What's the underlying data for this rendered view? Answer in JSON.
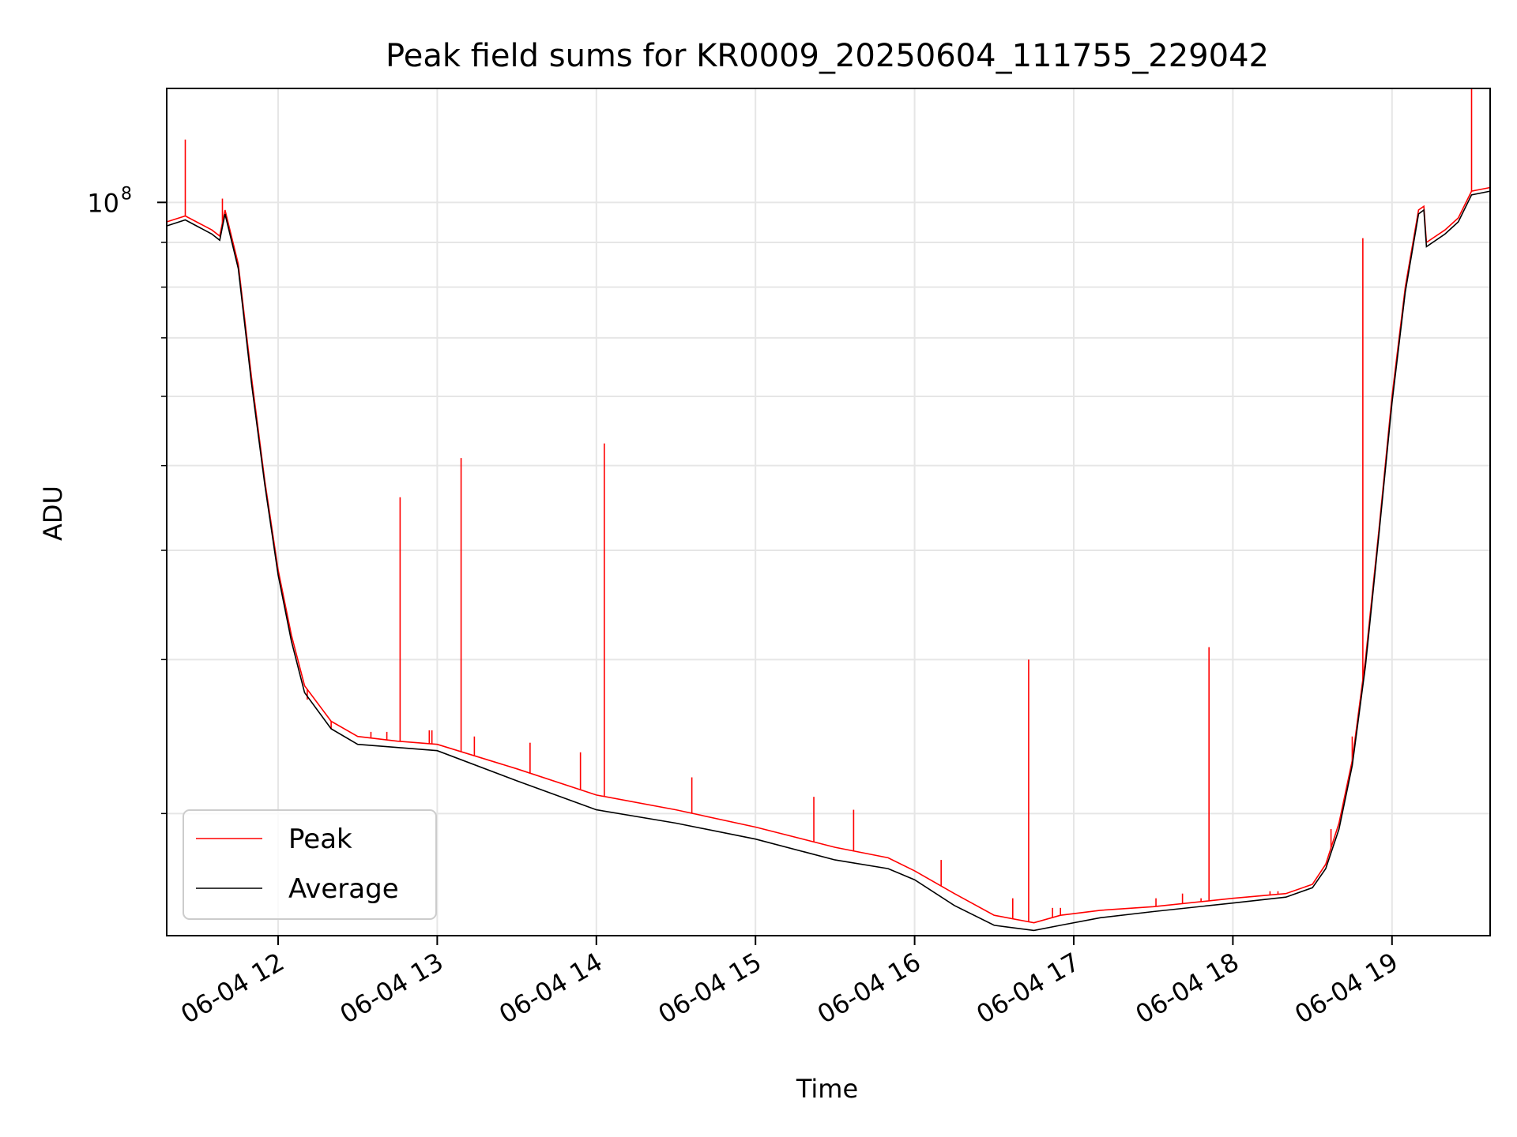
{
  "chart_data": {
    "type": "line",
    "title": "Peak field sums for KR0009_20250604_111755_229042",
    "xlabel": "Time",
    "ylabel": "ADU",
    "y_scale": "log",
    "y_tick_labels": [
      {
        "base": "10",
        "exp": "8",
        "value": 100000000
      }
    ],
    "ylim": [
      14500000,
      135000000
    ],
    "x_tick_labels": [
      "06-04 12",
      "06-04 13",
      "06-04 14",
      "06-04 15",
      "06-04 16",
      "06-04 17",
      "06-04 18",
      "06-04 19"
    ],
    "xlim": [
      "2025-06-04 11:18",
      "2025-06-04 19:37"
    ],
    "grid": true,
    "legend": {
      "position": "lower-left"
    },
    "colors": {
      "peak": "#ff0000",
      "average": "#000000",
      "grid": "#e6e6e6"
    },
    "series": [
      {
        "name": "Peak",
        "color": "#ff0000",
        "x": [
          "2025-06-04 11:18",
          "2025-06-04 11:25",
          "2025-06-04 11:35",
          "2025-06-04 11:38",
          "2025-06-04 11:40",
          "2025-06-04 11:45",
          "2025-06-04 11:50",
          "2025-06-04 11:55",
          "2025-06-04 12:00",
          "2025-06-04 12:05",
          "2025-06-04 12:10",
          "2025-06-04 12:20",
          "2025-06-04 12:30",
          "2025-06-04 12:45",
          "2025-06-04 13:00",
          "2025-06-04 13:30",
          "2025-06-04 14:00",
          "2025-06-04 14:30",
          "2025-06-04 15:00",
          "2025-06-04 15:30",
          "2025-06-04 15:50",
          "2025-06-04 16:00",
          "2025-06-04 16:15",
          "2025-06-04 16:30",
          "2025-06-04 16:45",
          "2025-06-04 16:55",
          "2025-06-04 17:10",
          "2025-06-04 17:30",
          "2025-06-04 18:00",
          "2025-06-04 18:20",
          "2025-06-04 18:30",
          "2025-06-04 18:35",
          "2025-06-04 18:40",
          "2025-06-04 18:45",
          "2025-06-04 18:50",
          "2025-06-04 18:55",
          "2025-06-04 19:00",
          "2025-06-04 19:05",
          "2025-06-04 19:10",
          "2025-06-04 19:12",
          "2025-06-04 19:13",
          "2025-06-04 19:20",
          "2025-06-04 19:25",
          "2025-06-04 19:30",
          "2025-06-04 19:37"
        ],
        "y": [
          95000000,
          96500000,
          93000000,
          91500000,
          98000000,
          85000000,
          63000000,
          48000000,
          38000000,
          32000000,
          28000000,
          25500000,
          24500000,
          24200000,
          24000000,
          22500000,
          21000000,
          20200000,
          19300000,
          18300000,
          17800000,
          17200000,
          16200000,
          15300000,
          15000000,
          15300000,
          15500000,
          15650000,
          16000000,
          16200000,
          16600000,
          17500000,
          19500000,
          23000000,
          30000000,
          42000000,
          60000000,
          80000000,
          98000000,
          99000000,
          90000000,
          93000000,
          96000000,
          103000000,
          104000000
        ],
        "spikes": [
          {
            "x": "2025-06-04 11:25",
            "y": 118000000
          },
          {
            "x": "2025-06-04 11:39",
            "y": 101000000
          },
          {
            "x": "2025-06-04 12:11",
            "y": 27000000
          },
          {
            "x": "2025-06-04 12:20",
            "y": 25000000
          },
          {
            "x": "2025-06-04 12:35",
            "y": 24800000
          },
          {
            "x": "2025-06-04 12:41",
            "y": 24800000
          },
          {
            "x": "2025-06-04 12:46",
            "y": 46000000
          },
          {
            "x": "2025-06-04 12:57",
            "y": 24900000
          },
          {
            "x": "2025-06-04 12:58",
            "y": 24900000
          },
          {
            "x": "2025-06-04 13:09",
            "y": 51000000
          },
          {
            "x": "2025-06-04 13:14",
            "y": 24500000
          },
          {
            "x": "2025-06-04 13:35",
            "y": 24100000
          },
          {
            "x": "2025-06-04 13:54",
            "y": 23500000
          },
          {
            "x": "2025-06-04 14:03",
            "y": 53000000
          },
          {
            "x": "2025-06-04 14:36",
            "y": 22000000
          },
          {
            "x": "2025-06-04 15:22",
            "y": 20900000
          },
          {
            "x": "2025-06-04 15:37",
            "y": 20200000
          },
          {
            "x": "2025-06-04 16:10",
            "y": 17700000
          },
          {
            "x": "2025-06-04 16:37",
            "y": 16000000
          },
          {
            "x": "2025-06-04 16:43",
            "y": 30000000
          },
          {
            "x": "2025-06-04 16:52",
            "y": 15600000
          },
          {
            "x": "2025-06-04 16:55",
            "y": 15600000
          },
          {
            "x": "2025-06-04 17:31",
            "y": 16000000
          },
          {
            "x": "2025-06-04 17:41",
            "y": 16200000
          },
          {
            "x": "2025-06-04 17:48",
            "y": 16000000
          },
          {
            "x": "2025-06-04 17:51",
            "y": 31000000
          },
          {
            "x": "2025-06-04 18:14",
            "y": 16300000
          },
          {
            "x": "2025-06-04 18:17",
            "y": 16300000
          },
          {
            "x": "2025-06-04 18:37",
            "y": 19200000
          },
          {
            "x": "2025-06-04 18:45",
            "y": 24500000
          },
          {
            "x": "2025-06-04 18:49",
            "y": 91000000
          },
          {
            "x": "2025-06-04 19:30",
            "y": 135000000
          }
        ]
      },
      {
        "name": "Average",
        "color": "#000000",
        "x": [
          "2025-06-04 11:18",
          "2025-06-04 11:25",
          "2025-06-04 11:35",
          "2025-06-04 11:38",
          "2025-06-04 11:40",
          "2025-06-04 11:45",
          "2025-06-04 11:50",
          "2025-06-04 11:55",
          "2025-06-04 12:00",
          "2025-06-04 12:05",
          "2025-06-04 12:10",
          "2025-06-04 12:20",
          "2025-06-04 12:30",
          "2025-06-04 12:45",
          "2025-06-04 13:00",
          "2025-06-04 13:30",
          "2025-06-04 14:00",
          "2025-06-04 14:30",
          "2025-06-04 15:00",
          "2025-06-04 15:30",
          "2025-06-04 15:50",
          "2025-06-04 16:00",
          "2025-06-04 16:15",
          "2025-06-04 16:30",
          "2025-06-04 16:45",
          "2025-06-04 16:55",
          "2025-06-04 17:10",
          "2025-06-04 17:30",
          "2025-06-04 18:00",
          "2025-06-04 18:20",
          "2025-06-04 18:30",
          "2025-06-04 18:35",
          "2025-06-04 18:40",
          "2025-06-04 18:45",
          "2025-06-04 18:50",
          "2025-06-04 18:55",
          "2025-06-04 19:00",
          "2025-06-04 19:05",
          "2025-06-04 19:10",
          "2025-06-04 19:12",
          "2025-06-04 19:13",
          "2025-06-04 19:20",
          "2025-06-04 19:25",
          "2025-06-04 19:30",
          "2025-06-04 19:37"
        ],
        "y": [
          94000000,
          95500000,
          92000000,
          90500000,
          97000000,
          84000000,
          62000000,
          47500000,
          37500000,
          31500000,
          27500000,
          25000000,
          24000000,
          23800000,
          23600000,
          21800000,
          20200000,
          19500000,
          18700000,
          17700000,
          17300000,
          16800000,
          15700000,
          14900000,
          14700000,
          14900000,
          15200000,
          15450000,
          15800000,
          16050000,
          16450000,
          17300000,
          19200000,
          22700000,
          29500000,
          41500000,
          59000000,
          79000000,
          97000000,
          98000000,
          89000000,
          92000000,
          95000000,
          102000000,
          103000000
        ]
      }
    ]
  }
}
